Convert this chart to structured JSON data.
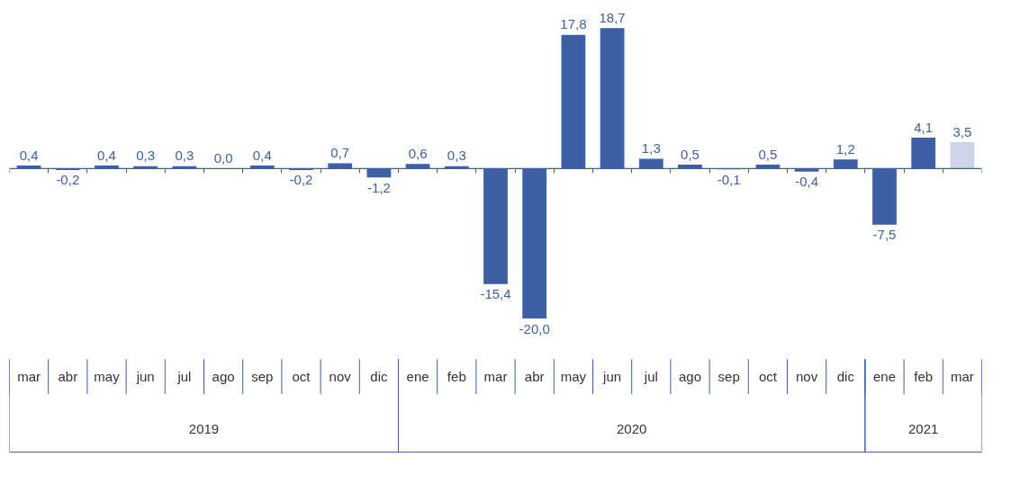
{
  "chart_data": {
    "type": "bar",
    "categories": [
      "mar",
      "abr",
      "may",
      "jun",
      "jul",
      "ago",
      "sep",
      "oct",
      "nov",
      "dic",
      "ene",
      "feb",
      "mar",
      "abr",
      "may",
      "jun",
      "jul",
      "ago",
      "sep",
      "oct",
      "nov",
      "dic",
      "ene",
      "feb",
      "mar"
    ],
    "values": [
      0.4,
      -0.2,
      0.4,
      0.3,
      0.3,
      0.0,
      0.4,
      -0.2,
      0.7,
      -1.2,
      0.6,
      0.3,
      -15.4,
      -20.0,
      17.8,
      18.7,
      1.3,
      0.5,
      -0.1,
      0.5,
      -0.4,
      1.2,
      -7.5,
      4.1,
      3.5
    ],
    "colors": [
      "#3d5fa6",
      "#3d5fa6",
      "#3d5fa6",
      "#3d5fa6",
      "#3d5fa6",
      "#3d5fa6",
      "#3d5fa6",
      "#3d5fa6",
      "#3d5fa6",
      "#3d5fa6",
      "#3d5fa6",
      "#3d5fa6",
      "#3d5fa6",
      "#3d5fa6",
      "#3d5fa6",
      "#3d5fa6",
      "#3d5fa6",
      "#3d5fa6",
      "#3d5fa6",
      "#3d5fa6",
      "#3d5fa6",
      "#3d5fa6",
      "#3d5fa6",
      "#3d5fa6",
      "#ccd5e8"
    ],
    "value_labels": [
      "0,4",
      "-0,2",
      "0,4",
      "0,3",
      "0,3",
      "0,0",
      "0,4",
      "-0,2",
      "0,7",
      "-1,2",
      "0,6",
      "0,3",
      "-15,4",
      "-20,0",
      "17,8",
      "18,7",
      "1,3",
      "0,5",
      "-0,1",
      "0,5",
      "-0,4",
      "1,2",
      "-7,5",
      "4,1",
      "3,5"
    ],
    "annotations": [
      "2019",
      "2020",
      "2021"
    ],
    "ref_lines": [
      {
        "axis": "y",
        "value": 0,
        "color": "#3d5fa6"
      }
    ]
  }
}
